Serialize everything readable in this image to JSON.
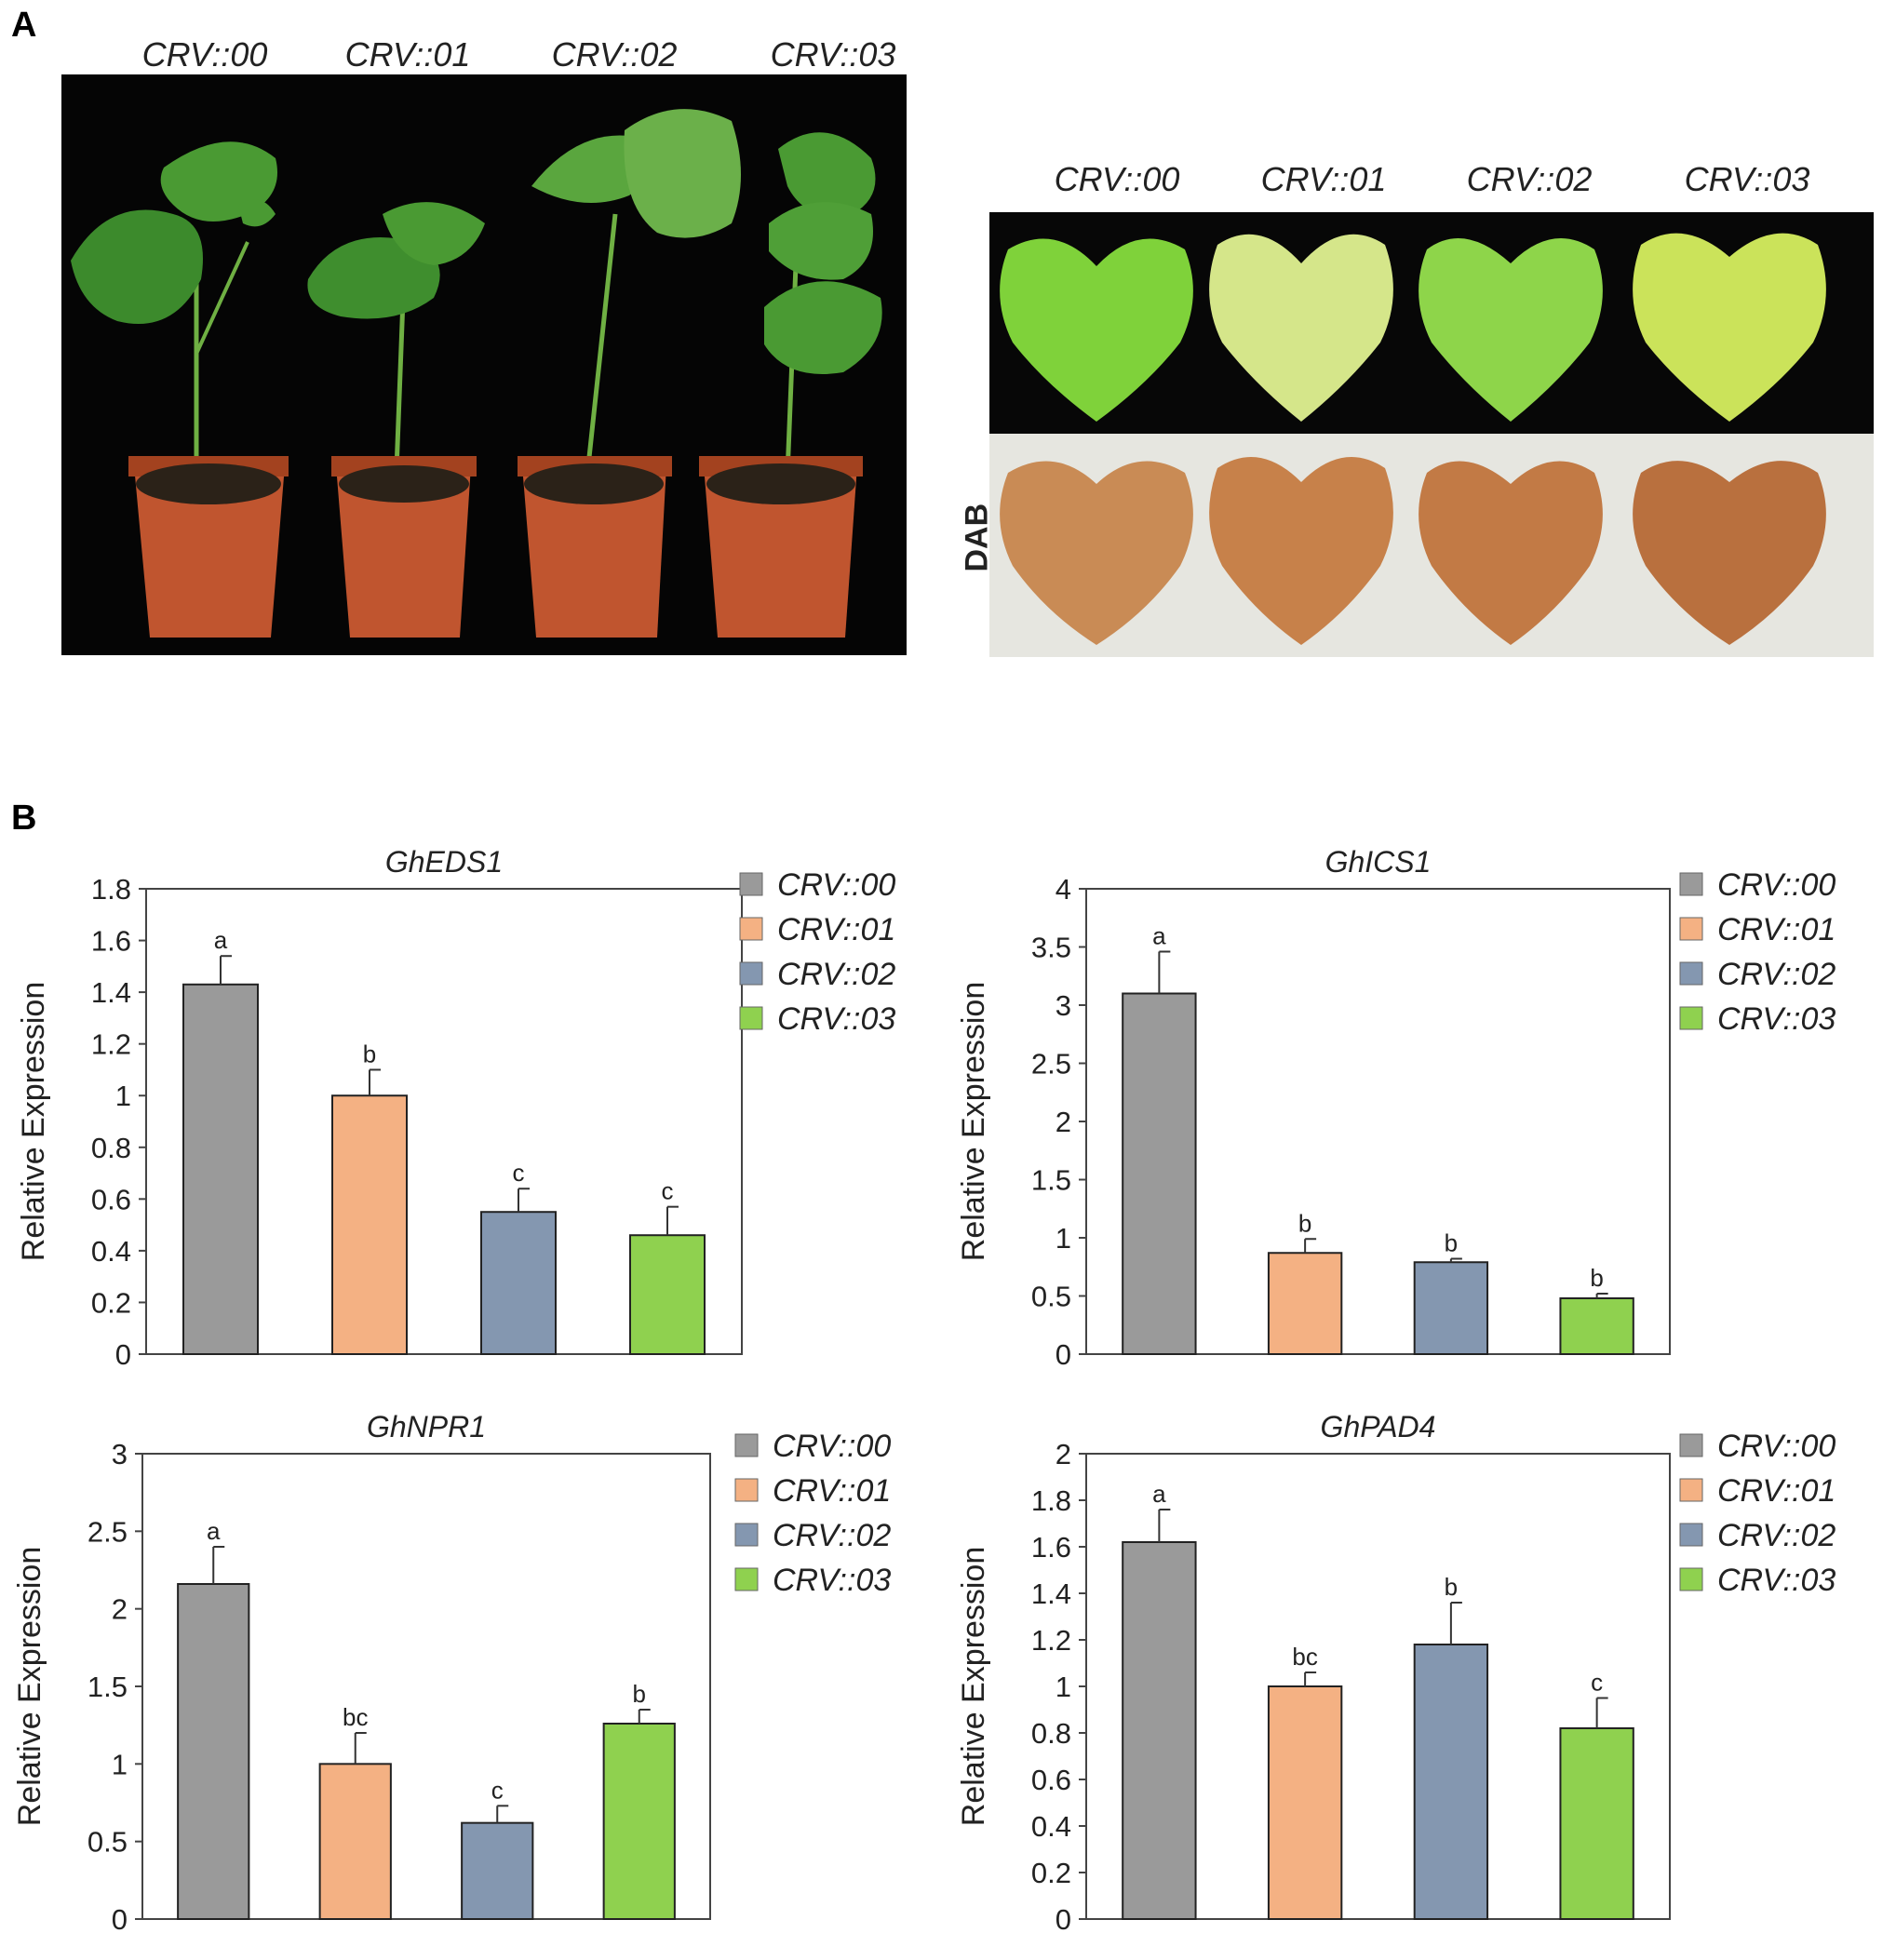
{
  "panel_a": {
    "label": "A",
    "plant_labels": [
      "CRV::00",
      "CRV::01",
      "CRV::02",
      "CRV::03"
    ],
    "leaf_labels": [
      "CRV::00",
      "CRV::01",
      "CRV::02",
      "CRV::03"
    ],
    "dab_label": "DAB"
  },
  "panel_b": {
    "label": "B"
  },
  "colors": {
    "CRV::00": "#9a9a9a",
    "CRV::01": "#f4b183",
    "CRV::02": "#8497b0",
    "CRV::03": "#8fd14f"
  },
  "chart_data": [
    {
      "type": "bar",
      "title": "GhEDS1",
      "ylabel": "Relative Expression",
      "categories": [
        "CRV::00",
        "CRV::01",
        "CRV::02",
        "CRV::03"
      ],
      "values": [
        1.43,
        1.0,
        0.55,
        0.46
      ],
      "errors": [
        0.11,
        0.1,
        0.09,
        0.11
      ],
      "letters": [
        "a",
        "b",
        "c",
        "c"
      ],
      "ylim": [
        0,
        1.8
      ],
      "yticks": [
        "0",
        "0.2",
        "0.4",
        "0.6",
        "0.8",
        "1",
        "1.2",
        "1.4",
        "1.6",
        "1.8"
      ],
      "legend": [
        "CRV::00",
        "CRV::01",
        "CRV::02",
        "CRV::03"
      ]
    },
    {
      "type": "bar",
      "title": "GhICS1",
      "ylabel": "Relative Expression",
      "categories": [
        "CRV::00",
        "CRV::01",
        "CRV::02",
        "CRV::03"
      ],
      "values": [
        3.1,
        0.87,
        0.79,
        0.48
      ],
      "errors": [
        0.36,
        0.12,
        0.03,
        0.04
      ],
      "letters": [
        "a",
        "b",
        "b",
        "b"
      ],
      "ylim": [
        0,
        4
      ],
      "yticks": [
        "0",
        "0.5",
        "1",
        "1.5",
        "2",
        "2.5",
        "3",
        "3.5",
        "4"
      ],
      "legend": [
        "CRV::00",
        "CRV::01",
        "CRV::02",
        "CRV::03"
      ]
    },
    {
      "type": "bar",
      "title": "GhNPR1",
      "ylabel": "Relative Expression",
      "categories": [
        "CRV::00",
        "CRV::01",
        "CRV::02",
        "CRV::03"
      ],
      "values": [
        2.16,
        1.0,
        0.62,
        1.26
      ],
      "errors": [
        0.24,
        0.2,
        0.11,
        0.09
      ],
      "letters": [
        "a",
        "bc",
        "c",
        "b"
      ],
      "ylim": [
        0,
        3
      ],
      "yticks": [
        "0",
        "0.5",
        "1",
        "1.5",
        "2",
        "2.5",
        "3"
      ],
      "legend": [
        "CRV::00",
        "CRV::01",
        "CRV::02",
        "CRV::03"
      ]
    },
    {
      "type": "bar",
      "title": "GhPAD4",
      "ylabel": "Relative Expression",
      "categories": [
        "CRV::00",
        "CRV::01",
        "CRV::02",
        "CRV::03"
      ],
      "values": [
        1.62,
        1.0,
        1.18,
        0.82
      ],
      "errors": [
        0.14,
        0.06,
        0.18,
        0.13
      ],
      "letters": [
        "a",
        "bc",
        "b",
        "c"
      ],
      "ylim": [
        0,
        2
      ],
      "yticks": [
        "0",
        "0.2",
        "0.4",
        "0.6",
        "0.8",
        "1",
        "1.2",
        "1.4",
        "1.6",
        "1.8",
        "2"
      ],
      "legend": [
        "CRV::00",
        "CRV::01",
        "CRV::02",
        "CRV::03"
      ]
    }
  ]
}
